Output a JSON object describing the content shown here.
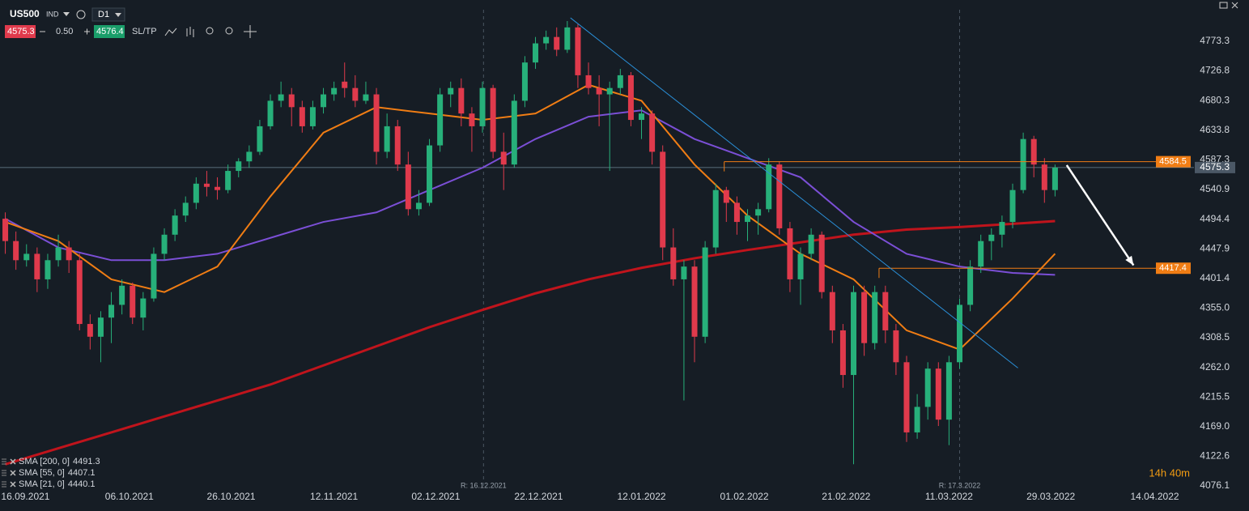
{
  "toolbar": {
    "symbol": "US500",
    "market": "IND",
    "timeframe": "D1",
    "bid": "4575.3",
    "spread": "0.50",
    "ask": "4576.4",
    "sltp": "SL/TP"
  },
  "chart_data": {
    "type": "candlestick",
    "up_color": "#27b07a",
    "down_color": "#e03a4c",
    "ohlc": [
      [
        4495,
        4505,
        4440,
        4460
      ],
      [
        4460,
        4475,
        4415,
        4430
      ],
      [
        4430,
        4455,
        4420,
        4440
      ],
      [
        4440,
        4450,
        4380,
        4400
      ],
      [
        4400,
        4440,
        4385,
        4430
      ],
      [
        4430,
        4470,
        4420,
        4450
      ],
      [
        4450,
        4460,
        4410,
        4430
      ],
      [
        4430,
        4440,
        4320,
        4330
      ],
      [
        4330,
        4345,
        4290,
        4310
      ],
      [
        4310,
        4350,
        4270,
        4340
      ],
      [
        4340,
        4380,
        4300,
        4360
      ],
      [
        4360,
        4400,
        4345,
        4390
      ],
      [
        4390,
        4395,
        4330,
        4340
      ],
      [
        4340,
        4380,
        4320,
        4370
      ],
      [
        4370,
        4450,
        4365,
        4440
      ],
      [
        4440,
        4480,
        4430,
        4470
      ],
      [
        4470,
        4510,
        4460,
        4500
      ],
      [
        4500,
        4530,
        4490,
        4520
      ],
      [
        4520,
        4560,
        4510,
        4550
      ],
      [
        4550,
        4570,
        4530,
        4545
      ],
      [
        4545,
        4560,
        4525,
        4540
      ],
      [
        4540,
        4580,
        4535,
        4570
      ],
      [
        4570,
        4590,
        4560,
        4585
      ],
      [
        4585,
        4610,
        4575,
        4600
      ],
      [
        4600,
        4650,
        4595,
        4640
      ],
      [
        4640,
        4690,
        4635,
        4680
      ],
      [
        4680,
        4710,
        4670,
        4690
      ],
      [
        4690,
        4700,
        4640,
        4670
      ],
      [
        4670,
        4680,
        4630,
        4640
      ],
      [
        4640,
        4680,
        4635,
        4670
      ],
      [
        4670,
        4700,
        4660,
        4690
      ],
      [
        4690,
        4710,
        4680,
        4700
      ],
      [
        4710,
        4740,
        4685,
        4700
      ],
      [
        4700,
        4720,
        4670,
        4680
      ],
      [
        4680,
        4710,
        4675,
        4690
      ],
      [
        4690,
        4700,
        4580,
        4600
      ],
      [
        4600,
        4660,
        4590,
        4640
      ],
      [
        4640,
        4650,
        4570,
        4580
      ],
      [
        4580,
        4600,
        4500,
        4510
      ],
      [
        4510,
        4540,
        4500,
        4520
      ],
      [
        4520,
        4620,
        4515,
        4610
      ],
      [
        4610,
        4700,
        4600,
        4690
      ],
      [
        4690,
        4710,
        4670,
        4700
      ],
      [
        4700,
        4715,
        4640,
        4660
      ],
      [
        4660,
        4670,
        4600,
        4640
      ],
      [
        4640,
        4710,
        4630,
        4700
      ],
      [
        4700,
        4705,
        4590,
        4600
      ],
      [
        4600,
        4630,
        4540,
        4580
      ],
      [
        4580,
        4690,
        4575,
        4680
      ],
      [
        4680,
        4750,
        4670,
        4740
      ],
      [
        4740,
        4780,
        4730,
        4770
      ],
      [
        4770,
        4790,
        4760,
        4780
      ],
      [
        4780,
        4795,
        4750,
        4760
      ],
      [
        4760,
        4805,
        4755,
        4795
      ],
      [
        4795,
        4800,
        4700,
        4720
      ],
      [
        4720,
        4740,
        4690,
        4700
      ],
      [
        4700,
        4720,
        4640,
        4690
      ],
      [
        4690,
        4710,
        4570,
        4700
      ],
      [
        4700,
        4730,
        4690,
        4720
      ],
      [
        4720,
        4725,
        4640,
        4650
      ],
      [
        4650,
        4670,
        4620,
        4660
      ],
      [
        4660,
        4665,
        4580,
        4600
      ],
      [
        4600,
        4610,
        4430,
        4450
      ],
      [
        4450,
        4480,
        4390,
        4400
      ],
      [
        4400,
        4430,
        4210,
        4420
      ],
      [
        4420,
        4430,
        4270,
        4310
      ],
      [
        4310,
        4460,
        4300,
        4450
      ],
      [
        4450,
        4550,
        4440,
        4540
      ],
      [
        4540,
        4545,
        4490,
        4520
      ],
      [
        4520,
        4530,
        4470,
        4490
      ],
      [
        4490,
        4510,
        4460,
        4500
      ],
      [
        4500,
        4520,
        4470,
        4510
      ],
      [
        4510,
        4590,
        4505,
        4580
      ],
      [
        4580,
        4585,
        4470,
        4480
      ],
      [
        4480,
        4490,
        4380,
        4400
      ],
      [
        4400,
        4450,
        4360,
        4440
      ],
      [
        4440,
        4480,
        4430,
        4470
      ],
      [
        4470,
        4475,
        4370,
        4380
      ],
      [
        4380,
        4390,
        4300,
        4320
      ],
      [
        4320,
        4330,
        4230,
        4250
      ],
      [
        4250,
        4390,
        4110,
        4380
      ],
      [
        4380,
        4390,
        4280,
        4300
      ],
      [
        4300,
        4390,
        4290,
        4380
      ],
      [
        4380,
        4390,
        4300,
        4320
      ],
      [
        4320,
        4330,
        4250,
        4270
      ],
      [
        4270,
        4280,
        4145,
        4160
      ],
      [
        4160,
        4220,
        4150,
        4200
      ],
      [
        4200,
        4270,
        4180,
        4260
      ],
      [
        4260,
        4270,
        4170,
        4180
      ],
      [
        4180,
        4280,
        4140,
        4270
      ],
      [
        4270,
        4370,
        4260,
        4360
      ],
      [
        4360,
        4430,
        4350,
        4420
      ],
      [
        4420,
        4470,
        4410,
        4460
      ],
      [
        4460,
        4480,
        4430,
        4470
      ],
      [
        4470,
        4500,
        4450,
        4490
      ],
      [
        4490,
        4550,
        4480,
        4540
      ],
      [
        4540,
        4630,
        4535,
        4620
      ],
      [
        4620,
        4625,
        4560,
        4580
      ],
      [
        4580,
        4590,
        4520,
        4540
      ],
      [
        4540,
        4580,
        4530,
        4575.3
      ]
    ],
    "xlim": [
      -0.5,
      112.1
    ],
    "xticks": [
      {
        "value": 1.9,
        "label": "16.09.2021"
      },
      {
        "value": 11.7,
        "label": "06.10.2021"
      },
      {
        "value": 21.3,
        "label": "26.10.2021"
      },
      {
        "value": 31.0,
        "label": "12.11.2021"
      },
      {
        "value": 40.6,
        "label": "02.12.2021"
      },
      {
        "value": 50.3,
        "label": "22.12.2021"
      },
      {
        "value": 60.0,
        "label": "12.01.2022"
      },
      {
        "value": 69.7,
        "label": "01.02.2022"
      },
      {
        "value": 79.3,
        "label": "21.02.2022"
      },
      {
        "value": 89.0,
        "label": "11.03.2022"
      },
      {
        "value": 98.6,
        "label": "29.03.2022"
      },
      {
        "value": 108.4,
        "label": "14.04.2022"
      }
    ],
    "ylim": [
      4076.1,
      4838
    ],
    "yticks": [
      4773.3,
      4726.8,
      4680.3,
      4633.8,
      4587.3,
      4540.9,
      4494.4,
      4447.9,
      4401.4,
      {
        "value": 4355,
        "label": "4355.0"
      },
      4308.5,
      {
        "value": 4262,
        "label": "4262.0"
      },
      4215.5,
      {
        "value": 4169,
        "label": "4169.0"
      },
      4122.6,
      4076.1
    ],
    "series": [
      {
        "name": "SMA [200, 0]",
        "last": 4491.3,
        "color": "#c0141c",
        "x": [
          0,
          5,
          10,
          15,
          20,
          25,
          30,
          35,
          40,
          45,
          50,
          55,
          60,
          65,
          70,
          75,
          80,
          85,
          90,
          95,
          99
        ],
        "values": [
          4110,
          4135,
          4160,
          4185,
          4210,
          4235,
          4265,
          4295,
          4325,
          4352,
          4378,
          4400,
          4418,
          4433,
          4446,
          4458,
          4470,
          4478,
          4482,
          4487,
          4491.3
        ]
      },
      {
        "name": "SMA [55, 0]",
        "last": 4407.1,
        "color": "#7b4fd6",
        "x": [
          0,
          5,
          10,
          15,
          20,
          25,
          30,
          35,
          40,
          45,
          50,
          55,
          60,
          65,
          70,
          75,
          80,
          85,
          90,
          95,
          99
        ],
        "values": [
          4495,
          4450,
          4430,
          4430,
          4440,
          4465,
          4490,
          4505,
          4540,
          4575,
          4620,
          4655,
          4665,
          4620,
          4590,
          4560,
          4490,
          4440,
          4420,
          4410,
          4407.1
        ]
      },
      {
        "name": "SMA [21, 0]",
        "last": 4440.1,
        "color": "#f07d14",
        "x": [
          0,
          5,
          10,
          15,
          20,
          25,
          30,
          35,
          40,
          45,
          50,
          55,
          60,
          65,
          70,
          75,
          80,
          85,
          90,
          95,
          99
        ],
        "values": [
          4490,
          4460,
          4400,
          4380,
          4420,
          4530,
          4630,
          4670,
          4660,
          4650,
          4660,
          4705,
          4680,
          4580,
          4500,
          4440,
          4400,
          4320,
          4290,
          4370,
          4440.1
        ]
      }
    ],
    "current_price": 4575.3,
    "levels": [
      {
        "value": 4584.5,
        "x_start": 67.8,
        "color": "#f07d14"
      },
      {
        "value": 4417.4,
        "x_start": 82.4,
        "color": "#f07d14"
      }
    ],
    "trendline": {
      "x": [
        53.3,
        95.5
      ],
      "values": [
        4810,
        4261
      ],
      "color": "#2a8fd8"
    },
    "arrow": {
      "x": [
        100.1,
        106.4
      ],
      "values": [
        4579,
        4422
      ],
      "color": "#ffffff"
    },
    "markers": [
      {
        "x": 45.1,
        "label": "R: 16.12.2021"
      },
      {
        "x": 90.0,
        "label": "R: 17.3.2022"
      }
    ],
    "countdown": "14h 40m"
  }
}
